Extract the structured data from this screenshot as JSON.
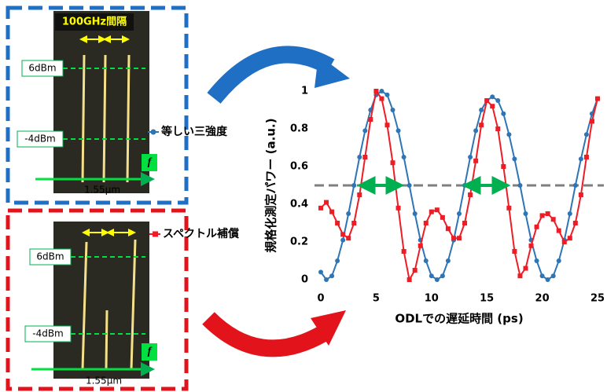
{
  "chart_data": {
    "type": "line",
    "xlabel": "ODLでの遅延時間 (ps)",
    "ylabel": "規格化測定パワー (a.u.)",
    "x": [
      0,
      0.5,
      1,
      1.5,
      2,
      2.5,
      3,
      3.5,
      4,
      4.5,
      5,
      5.5,
      6,
      6.5,
      7,
      7.5,
      8,
      8.5,
      9,
      9.5,
      10,
      10.5,
      11,
      11.5,
      12,
      12.5,
      13,
      13.5,
      14,
      14.5,
      15,
      15.5,
      16,
      16.5,
      17,
      17.5,
      18,
      18.5,
      19,
      19.5,
      20,
      20.5,
      21,
      21.5,
      22,
      22.5,
      23,
      23.5,
      24,
      24.5,
      25
    ],
    "series": [
      {
        "name": "等しい三強度",
        "color": "#2e75b6",
        "values": [
          0.04,
          0,
          0.02,
          0.1,
          0.21,
          0.35,
          0.5,
          0.65,
          0.79,
          0.9,
          0.98,
          1,
          0.98,
          0.9,
          0.79,
          0.65,
          0.5,
          0.35,
          0.21,
          0.1,
          0.02,
          0,
          0.02,
          0.1,
          0.21,
          0.35,
          0.5,
          0.65,
          0.79,
          0.9,
          0.95,
          0.97,
          0.95,
          0.88,
          0.77,
          0.64,
          0.5,
          0.35,
          0.21,
          0.1,
          0.02,
          0,
          0.02,
          0.1,
          0.21,
          0.35,
          0.5,
          0.64,
          0.77,
          0.88,
          0.96
        ]
      },
      {
        "name": "スペクトル補償",
        "color": "#ee1c25",
        "values": [
          0.38,
          0.41,
          0.36,
          0.3,
          0.24,
          0.22,
          0.3,
          0.45,
          0.65,
          0.85,
          1,
          0.96,
          0.82,
          0.62,
          0.38,
          0.15,
          0,
          0.05,
          0.18,
          0.3,
          0.36,
          0.37,
          0.33,
          0.27,
          0.22,
          0.22,
          0.3,
          0.45,
          0.63,
          0.82,
          0.95,
          0.92,
          0.8,
          0.6,
          0.38,
          0.15,
          0.02,
          0.06,
          0.18,
          0.28,
          0.34,
          0.35,
          0.32,
          0.26,
          0.2,
          0.22,
          0.3,
          0.45,
          0.65,
          0.84,
          0.96
        ]
      }
    ],
    "xlim": [
      0,
      25
    ],
    "ylim": [
      0,
      1
    ],
    "xticks": [
      0,
      5,
      10,
      15,
      20,
      25
    ],
    "yticks": [
      0,
      0.2,
      0.4,
      0.6,
      0.8,
      1
    ],
    "hline": 0.5,
    "fwhm_arrows": [
      [
        4.1,
        6.7
      ],
      [
        13.6,
        16.3
      ]
    ]
  },
  "panels": [
    {
      "label": "100GHz間隔",
      "levels": [
        "6dBm",
        "-4dBm"
      ],
      "wavelength": "1.55μm",
      "axis": "f"
    },
    {
      "levels": [
        "6dBm",
        "-4dBm"
      ],
      "wavelength": "1.55μm",
      "axis": "f"
    }
  ]
}
